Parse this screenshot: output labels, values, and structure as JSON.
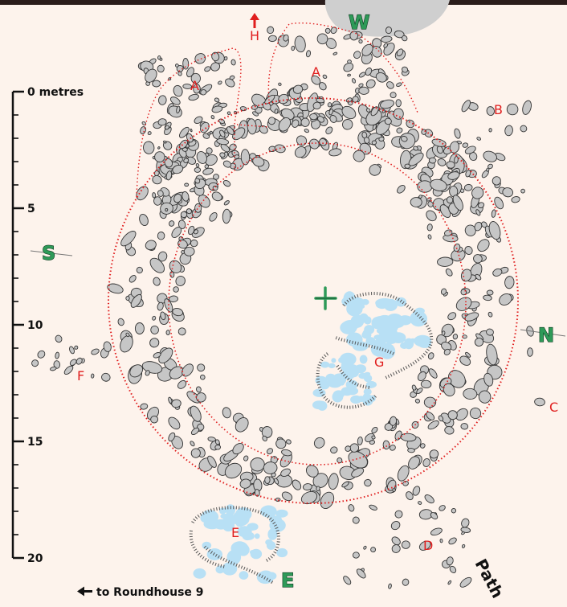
{
  "scale": {
    "ticks": [
      {
        "value": 0,
        "label": "0 metres"
      },
      {
        "value": 5,
        "label": "5"
      },
      {
        "value": 10,
        "label": "10"
      },
      {
        "value": 15,
        "label": "15"
      },
      {
        "value": 20,
        "label": "20"
      }
    ]
  },
  "compass": {
    "north": "N",
    "south": "S",
    "west": "W",
    "east": "E"
  },
  "labels": {
    "A": "A",
    "B": "B",
    "C": "C",
    "D": "D",
    "E": "E",
    "F": "F",
    "G": "G",
    "H": "H"
  },
  "annotations": {
    "path": "Path",
    "to_roundhouse": "to Roundhouse 9"
  },
  "colors": {
    "stone_fill": "#c6c6c6",
    "stone_stroke": "#333333",
    "wall_dots": "#e01e1e",
    "paving": "#b8e0f5",
    "background": "#fdf3ec",
    "compass_green": "#2e9a58",
    "lettering_red": "#e01e1e",
    "outcrop": "#cfcfcf"
  }
}
